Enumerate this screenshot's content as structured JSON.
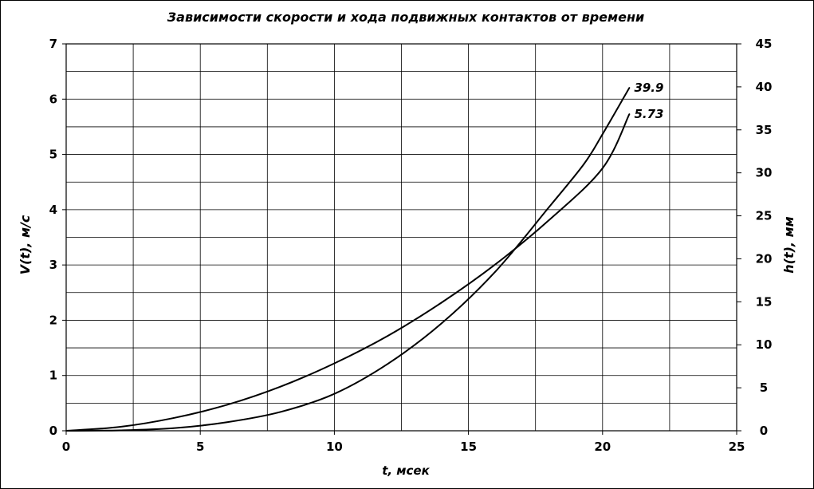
{
  "chart_data": {
    "type": "line",
    "title": "Зависимости скорости и хода подвижных контактов от времени",
    "xlabel": "t, мсек",
    "ylabel_left": "V(t), м/с",
    "ylabel_right": "h(t), мм",
    "xlim": [
      0,
      25
    ],
    "ylim_left": [
      0,
      7
    ],
    "ylim_right": [
      0,
      45
    ],
    "x_ticks": [
      "0",
      "5",
      "10",
      "15",
      "20",
      "25"
    ],
    "y_ticks_left": [
      "0",
      "1",
      "2",
      "3",
      "4",
      "5",
      "6",
      "7"
    ],
    "y_ticks_right": [
      "0",
      "5",
      "10",
      "15",
      "20",
      "25",
      "30",
      "35",
      "40",
      "45"
    ],
    "grid": true,
    "legend": "none",
    "series": [
      {
        "axis": "left",
        "end_label": "5.73",
        "x": [
          0,
          2,
          4,
          6,
          8,
          10,
          12,
          14,
          16,
          18,
          20,
          21
        ],
        "y": [
          0,
          0.07,
          0.23,
          0.47,
          0.8,
          1.22,
          1.72,
          2.32,
          3.01,
          3.81,
          4.75,
          5.73
        ]
      },
      {
        "axis": "right",
        "end_label": "39.9",
        "x": [
          0,
          2,
          4,
          6,
          8,
          10,
          12,
          14,
          16,
          18,
          19.3,
          20,
          21
        ],
        "y": [
          0,
          0.05,
          0.3,
          1.0,
          2.2,
          4.3,
          7.8,
          12.5,
          18.5,
          26.0,
          31.0,
          34.5,
          39.9
        ]
      }
    ]
  }
}
